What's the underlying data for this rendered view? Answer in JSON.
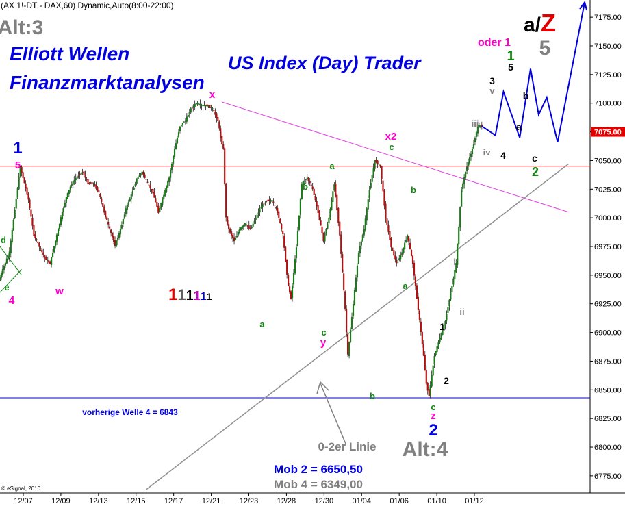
{
  "header": {
    "symbol_line": "(AX 1!-DT - DAX,60) Dynamic,Auto(8:00-22:00)"
  },
  "branding": {
    "title_line1": "Elliott Wellen",
    "title_line2": "Finanzmarktanalysen",
    "subtitle": "US Index (Day) Trader",
    "copyright": "© eSignal, 2010"
  },
  "colors": {
    "bull_candle": "#1a7a1a",
    "bear_candle": "#b01010",
    "wick": "#000000",
    "blue_label": "#0000e0",
    "magenta_label": "#ff00cc",
    "green_label": "#118811",
    "gray_label": "#808080",
    "red_label": "#e00000",
    "projection_line": "#0000e0",
    "resistance_line": "#d02020",
    "support_line": "#0000cc",
    "trendline_magenta": "#e040e0",
    "trendline_gray": "#909090",
    "price_highlight": "#e00000"
  },
  "chart_data": {
    "type": "candlestick",
    "timeframe": "60 min",
    "ylim": [
      6760,
      7190
    ],
    "y_ticks": [
      6775,
      6800,
      6825,
      6850,
      6875,
      6900,
      6925,
      6950,
      6975,
      7000,
      7025,
      7050,
      7075,
      7100,
      7125,
      7150,
      7175
    ],
    "current_price_label": "7075.00",
    "x_ticks": [
      "12/07",
      "12/09",
      "12/13",
      "12/15",
      "12/17",
      "12/21",
      "12/23",
      "12/28",
      "12/30",
      "01/04",
      "01/06",
      "01/10",
      "01/12"
    ],
    "price_path": [
      [
        0,
        6945
      ],
      [
        2,
        6958
      ],
      [
        4,
        6970
      ],
      [
        6,
        7008
      ],
      [
        8,
        7044
      ],
      [
        9,
        7035
      ],
      [
        11,
        7016
      ],
      [
        13,
        6985
      ],
      [
        15,
        6975
      ],
      [
        17,
        6965
      ],
      [
        19,
        6960
      ],
      [
        21,
        6980
      ],
      [
        23,
        7000
      ],
      [
        25,
        7018
      ],
      [
        27,
        7030
      ],
      [
        29,
        7036
      ],
      [
        31,
        7040
      ],
      [
        33,
        7030
      ],
      [
        35,
        7030
      ],
      [
        37,
        7022
      ],
      [
        39,
        7005
      ],
      [
        41,
        6990
      ],
      [
        43,
        6976
      ],
      [
        45,
        6990
      ],
      [
        47,
        7008
      ],
      [
        49,
        7020
      ],
      [
        51,
        7034
      ],
      [
        53,
        7040
      ],
      [
        55,
        7030
      ],
      [
        57,
        7022
      ],
      [
        59,
        7005
      ],
      [
        61,
        7020
      ],
      [
        63,
        7035
      ],
      [
        65,
        7060
      ],
      [
        67,
        7080
      ],
      [
        69,
        7085
      ],
      [
        71,
        7095
      ],
      [
        73,
        7100
      ],
      [
        75,
        7098
      ],
      [
        77,
        7098
      ],
      [
        79,
        7095
      ],
      [
        81,
        7085
      ],
      [
        82,
        7070
      ],
      [
        83,
        7060
      ],
      [
        84,
        7000
      ],
      [
        85,
        6990
      ],
      [
        87,
        6980
      ],
      [
        89,
        6990
      ],
      [
        91,
        6995
      ],
      [
        93,
        6990
      ],
      [
        95,
        7000
      ],
      [
        97,
        7010
      ],
      [
        99,
        7015
      ],
      [
        101,
        7015
      ],
      [
        103,
        7005
      ],
      [
        105,
        6985
      ],
      [
        107,
        6940
      ],
      [
        108,
        6930
      ],
      [
        110,
        6975
      ],
      [
        112,
        7030
      ],
      [
        114,
        7035
      ],
      [
        116,
        7025
      ],
      [
        118,
        7005
      ],
      [
        120,
        6980
      ],
      [
        122,
        7000
      ],
      [
        124,
        7030
      ],
      [
        126,
        6985
      ],
      [
        128,
        6920
      ],
      [
        129,
        6880
      ],
      [
        131,
        6925
      ],
      [
        133,
        6970
      ],
      [
        135,
        6990
      ],
      [
        137,
        7025
      ],
      [
        139,
        7050
      ],
      [
        141,
        7045
      ],
      [
        143,
        7000
      ],
      [
        145,
        6975
      ],
      [
        147,
        6960
      ],
      [
        149,
        6970
      ],
      [
        151,
        6985
      ],
      [
        153,
        6960
      ],
      [
        155,
        6920
      ],
      [
        157,
        6880
      ],
      [
        158,
        6855
      ],
      [
        159,
        6845
      ],
      [
        161,
        6880
      ],
      [
        163,
        6895
      ],
      [
        165,
        6910
      ],
      [
        167,
        6935
      ],
      [
        169,
        6960
      ],
      [
        171,
        7025
      ],
      [
        173,
        7045
      ],
      [
        175,
        7060
      ],
      [
        177,
        7080
      ],
      [
        178,
        7080
      ]
    ],
    "horizontal_levels": [
      {
        "name": "resistance",
        "value": 7045
      },
      {
        "name": "vorherige Welle 4",
        "value": 6843
      }
    ],
    "trendlines": [
      {
        "name": "magenta",
        "from": [
          82,
          7101
        ],
        "to": [
          210,
          7005
        ]
      },
      {
        "name": "0-2er Linie",
        "from": [
          54,
          6763
        ],
        "to": [
          210,
          7047
        ]
      }
    ],
    "projection": [
      [
        178,
        7080
      ],
      [
        183,
        7072
      ],
      [
        186,
        7110
      ],
      [
        192,
        7070
      ],
      [
        196,
        7130
      ],
      [
        199,
        7090
      ],
      [
        202,
        7105
      ],
      [
        206,
        7066
      ],
      [
        216,
        7188
      ]
    ],
    "labels": [
      {
        "text": "Alt:3",
        "x": 30,
        "y": 50,
        "size": 30,
        "color": "gray"
      },
      {
        "text": "1",
        "x": 26,
        "y": 224,
        "size": 24,
        "color": "blue"
      },
      {
        "text": "5",
        "x": 26,
        "y": 246,
        "size": 15,
        "color": "magenta"
      },
      {
        "text": "x",
        "x": 310,
        "y": 143,
        "size": 15,
        "color": "magenta"
      },
      {
        "text": "x2",
        "x": 571,
        "y": 204,
        "size": 15,
        "color": "magenta"
      },
      {
        "text": "c",
        "x": 572,
        "y": 219,
        "size": 13,
        "color": "green"
      },
      {
        "text": "a",
        "x": 485,
        "y": 247,
        "size": 13,
        "color": "green"
      },
      {
        "text": "b",
        "x": 446,
        "y": 277,
        "size": 13,
        "color": "green"
      },
      {
        "text": "b",
        "x": 604,
        "y": 282,
        "size": 13,
        "color": "green"
      },
      {
        "text": "d",
        "x": 5,
        "y": 355,
        "size": 13,
        "color": "green"
      },
      {
        "text": "e",
        "x": 10,
        "y": 424,
        "size": 13,
        "color": "green"
      },
      {
        "text": "4",
        "x": 17,
        "y": 444,
        "size": 16,
        "color": "magenta"
      },
      {
        "text": "w",
        "x": 87,
        "y": 430,
        "size": 15,
        "color": "magenta"
      },
      {
        "text": "a",
        "x": 383,
        "y": 478,
        "size": 13,
        "color": "green"
      },
      {
        "text": "c",
        "x": 473,
        "y": 490,
        "size": 13,
        "color": "green"
      },
      {
        "text": "y",
        "x": 472,
        "y": 505,
        "size": 15,
        "color": "magenta"
      },
      {
        "text": "a",
        "x": 592,
        "y": 422,
        "size": 13,
        "color": "green"
      },
      {
        "text": "b",
        "x": 544,
        "y": 583,
        "size": 13,
        "color": "green"
      },
      {
        "text": "c",
        "x": 633,
        "y": 599,
        "size": 13,
        "color": "green"
      },
      {
        "text": "z",
        "x": 633,
        "y": 612,
        "size": 15,
        "color": "magenta"
      },
      {
        "text": "2",
        "x": 633,
        "y": 636,
        "size": 24,
        "color": "blue"
      },
      {
        "text": "1",
        "x": 646,
        "y": 482,
        "size": 14,
        "color": "black"
      },
      {
        "text": "2",
        "x": 652,
        "y": 561,
        "size": 14,
        "color": "black"
      },
      {
        "text": "i",
        "x": 664,
        "y": 387,
        "size": 13,
        "color": "gray"
      },
      {
        "text": "ii",
        "x": 675,
        "y": 460,
        "size": 13,
        "color": "gray"
      },
      {
        "text": "iii",
        "x": 694,
        "y": 185,
        "size": 13,
        "color": "gray"
      },
      {
        "text": "iv",
        "x": 711,
        "y": 227,
        "size": 13,
        "color": "gray"
      },
      {
        "text": "v",
        "x": 719,
        "y": 137,
        "size": 13,
        "color": "gray"
      },
      {
        "text": "3",
        "x": 719,
        "y": 123,
        "size": 14,
        "color": "black"
      },
      {
        "text": "4",
        "x": 735,
        "y": 232,
        "size": 14,
        "color": "black"
      },
      {
        "text": "5",
        "x": 746,
        "y": 103,
        "size": 14,
        "color": "black"
      },
      {
        "text": "1",
        "x": 746,
        "y": 88,
        "size": 20,
        "color": "green"
      },
      {
        "text": "a",
        "x": 758,
        "y": 190,
        "size": 14,
        "color": "black"
      },
      {
        "text": "b",
        "x": 768,
        "y": 145,
        "size": 14,
        "color": "black"
      },
      {
        "text": "c",
        "x": 781,
        "y": 236,
        "size": 14,
        "color": "black"
      },
      {
        "text": "2",
        "x": 782,
        "y": 257,
        "size": 18,
        "color": "green"
      },
      {
        "text": "oder 1",
        "x": 722,
        "y": 67,
        "size": 16,
        "color": "magenta"
      },
      {
        "text": "5",
        "x": 796,
        "y": 80,
        "size": 30,
        "color": "gray"
      },
      {
        "text": "Alt:4",
        "x": 621,
        "y": 666,
        "size": 30,
        "color": "gray"
      },
      {
        "text": "0-2er Linie",
        "x": 507,
        "y": 658,
        "size": 17,
        "color": "gray"
      }
    ],
    "series_labels": {
      "counter": "111111"
    },
    "projection_target": {
      "a_part": "a/",
      "z_part": "Z"
    },
    "info_lines": [
      {
        "text": "vorherige Welle 4 = 6843",
        "x": 190,
        "y": 606,
        "size": 12,
        "color": "blue"
      },
      {
        "text": "Mob 2 = 6650,50",
        "x": 465,
        "y": 691,
        "size": 17,
        "color": "blue"
      },
      {
        "text": "Mob 4 = 6349,00",
        "x": 465,
        "y": 713,
        "size": 17,
        "color": "gray"
      }
    ],
    "arrow_0_2": {
      "from": [
        82,
        1
      ],
      "to": [
        0,
        0
      ]
    }
  }
}
